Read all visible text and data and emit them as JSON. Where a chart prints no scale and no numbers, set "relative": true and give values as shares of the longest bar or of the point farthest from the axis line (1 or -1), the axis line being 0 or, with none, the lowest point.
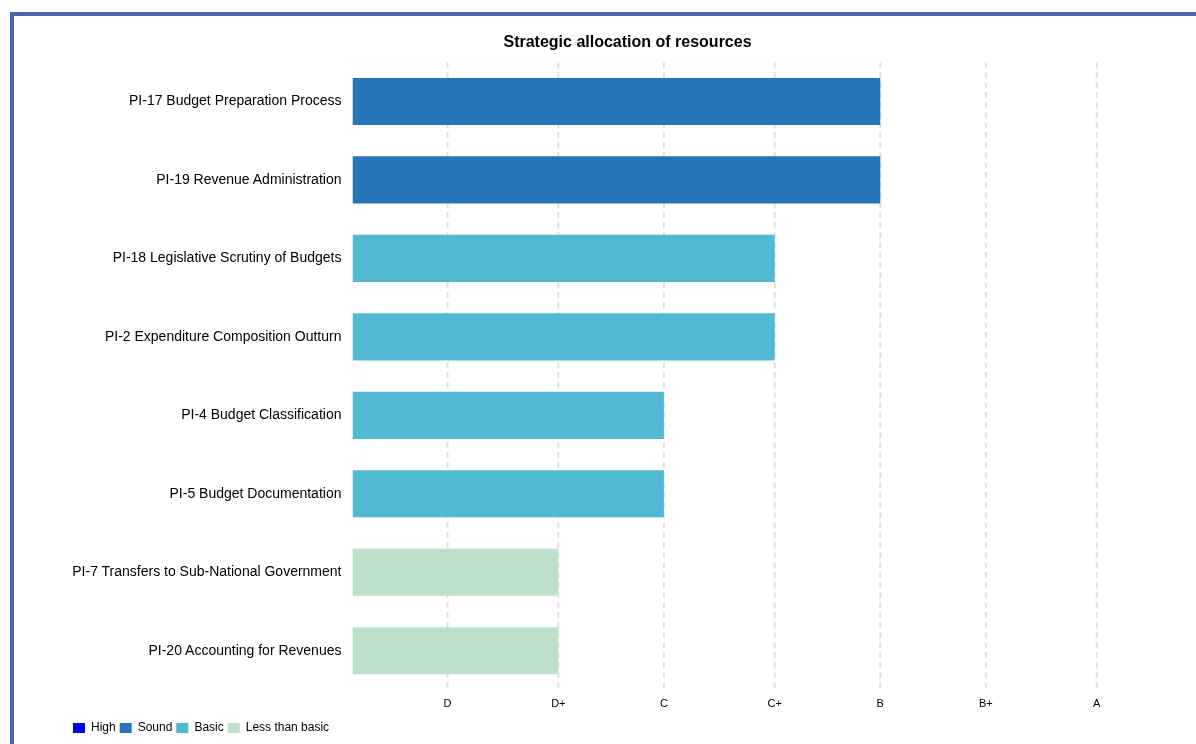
{
  "chart_data": {
    "type": "bar",
    "orientation": "horizontal",
    "stacked": true,
    "relative": true,
    "title": "Strategic allocation of resources",
    "categories": [
      "PI-17 Budget Preparation Process",
      "PI-19 Revenue Administration",
      "PI-18 Legislative Scrutiny of Budgets",
      "PI-2 Expenditure Composition Outturn",
      "PI-4 Budget Classification",
      "PI-5 Budget Documentation",
      "PI-7 Transfers to Sub-National Government",
      "PI-20 Accounting for Revenues"
    ],
    "series": [
      {
        "name": "High",
        "color": "#0000ff",
        "values": [
          null,
          null,
          null,
          null,
          null,
          null,
          null,
          null
        ]
      },
      {
        "name": "Sound",
        "color": "#2874b8",
        "values": [
          1,
          1,
          null,
          null,
          null,
          null,
          null,
          null
        ]
      },
      {
        "name": "Basic",
        "color": "#52b9d3",
        "values": [
          null,
          null,
          0.8,
          0.8,
          0.59,
          0.59,
          null,
          null
        ]
      },
      {
        "name": "Less than basic",
        "color": "#bde0c8",
        "values": [
          null,
          null,
          null,
          null,
          null,
          null,
          0.39,
          0.39
        ]
      }
    ],
    "ref_lines": [
      {
        "axis": "x",
        "value": 0.18,
        "label": "D",
        "color": "#e0e0e0",
        "line_style": "dashed"
      },
      {
        "axis": "x",
        "value": 0.39,
        "label": "D+",
        "color": "#e0e0e0",
        "line_style": "dashed"
      },
      {
        "axis": "x",
        "value": 0.59,
        "label": "C",
        "color": "#e0e0e0",
        "line_style": "dashed"
      },
      {
        "axis": "x",
        "value": 0.8,
        "label": "C+",
        "color": "#e0e0e0",
        "line_style": "dashed"
      },
      {
        "axis": "x",
        "value": 1,
        "label": "B",
        "color": "#e0e0e0",
        "line_style": "dashed"
      },
      {
        "axis": "x",
        "value": 1.2,
        "label": "B+",
        "color": "#e0e0e0",
        "line_style": "dashed"
      },
      {
        "axis": "x",
        "value": 1.41,
        "label": "A",
        "color": "#e0e0e0",
        "line_style": "dashed"
      }
    ],
    "legend": "bottom left"
  }
}
